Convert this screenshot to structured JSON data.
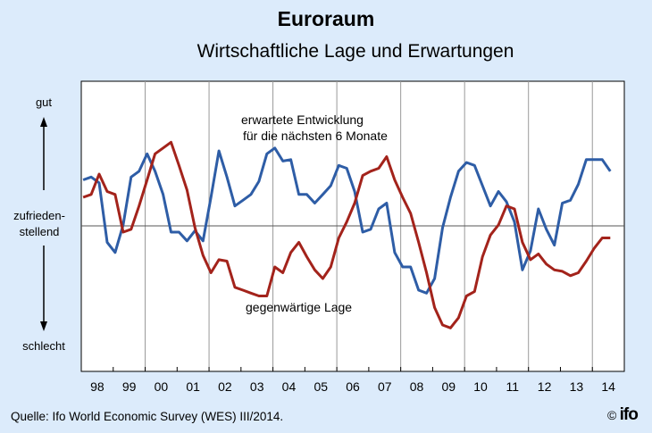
{
  "title": "Euroraum",
  "subtitle": "Wirtschaftliche Lage und Erwartungen",
  "source": "Quelle: Ifo World Economic Survey (WES) III/2014.",
  "logo": "© ifo",
  "y_labels": {
    "top": "gut",
    "middle_1": "zufrieden-",
    "middle_2": "stellend",
    "bottom": "schlecht"
  },
  "annotations": {
    "expected_1": "erwartete Entwicklung",
    "expected_2": "für die nächsten  6 Monate",
    "current": "gegenwärtige Lage"
  },
  "colors": {
    "expected": "#2e5da6",
    "current": "#a3231b",
    "background": "#dcebfb"
  },
  "chart_data": {
    "type": "line",
    "title": "Euroraum",
    "subtitle": "Wirtschaftliche Lage und Erwartungen",
    "xlabel": "",
    "ylabel": "",
    "x_tick_labels": [
      "98",
      "99",
      "00",
      "01",
      "02",
      "03",
      "04",
      "05",
      "06",
      "07",
      "08",
      "09",
      "10",
      "11",
      "12",
      "13",
      "14"
    ],
    "xlim": [
      1998,
      2015
    ],
    "ylim": [
      -1,
      1
    ],
    "x_start": 1998.0,
    "x_step": 0.25,
    "reference_line": 0,
    "grid": "vertical every two years",
    "series": [
      {
        "name": "erwartete Entwicklung für die nächsten 6 Monate",
        "color": "#2e5da6",
        "values": [
          0.32,
          0.34,
          0.3,
          -0.11,
          -0.18,
          0.01,
          0.34,
          0.38,
          0.5,
          0.38,
          0.22,
          -0.04,
          -0.04,
          -0.1,
          -0.03,
          -0.1,
          0.2,
          0.52,
          0.34,
          0.14,
          0.18,
          0.22,
          0.31,
          0.5,
          0.54,
          0.45,
          0.46,
          0.22,
          0.22,
          0.16,
          0.22,
          0.28,
          0.42,
          0.4,
          0.24,
          -0.04,
          -0.02,
          0.12,
          0.16,
          -0.18,
          -0.28,
          -0.28,
          -0.44,
          -0.46,
          -0.36,
          -0.01,
          0.2,
          0.38,
          0.44,
          0.42,
          0.28,
          0.14,
          0.24,
          0.17,
          0.03,
          -0.3,
          -0.17,
          0.12,
          -0.02,
          -0.13,
          0.16,
          0.18,
          0.29,
          0.46,
          0.46,
          0.46,
          0.38
        ]
      },
      {
        "name": "gegenwärtige Lage",
        "color": "#a3231b",
        "values": [
          0.2,
          0.22,
          0.36,
          0.24,
          0.22,
          -0.04,
          -0.02,
          0.14,
          0.32,
          0.5,
          0.54,
          0.58,
          0.42,
          0.25,
          -0.01,
          -0.2,
          -0.32,
          -0.23,
          -0.24,
          -0.42,
          -0.44,
          -0.46,
          -0.48,
          -0.48,
          -0.28,
          -0.32,
          -0.18,
          -0.11,
          -0.21,
          -0.3,
          -0.36,
          -0.28,
          -0.08,
          0.03,
          0.16,
          0.35,
          0.38,
          0.4,
          0.48,
          0.32,
          0.2,
          0.09,
          -0.11,
          -0.32,
          -0.56,
          -0.68,
          -0.7,
          -0.63,
          -0.48,
          -0.45,
          -0.21,
          -0.06,
          0.01,
          0.14,
          0.12,
          -0.11,
          -0.23,
          -0.19,
          -0.26,
          -0.3,
          -0.31,
          -0.34,
          -0.32,
          -0.24,
          -0.15,
          -0.08,
          -0.08
        ]
      }
    ]
  }
}
